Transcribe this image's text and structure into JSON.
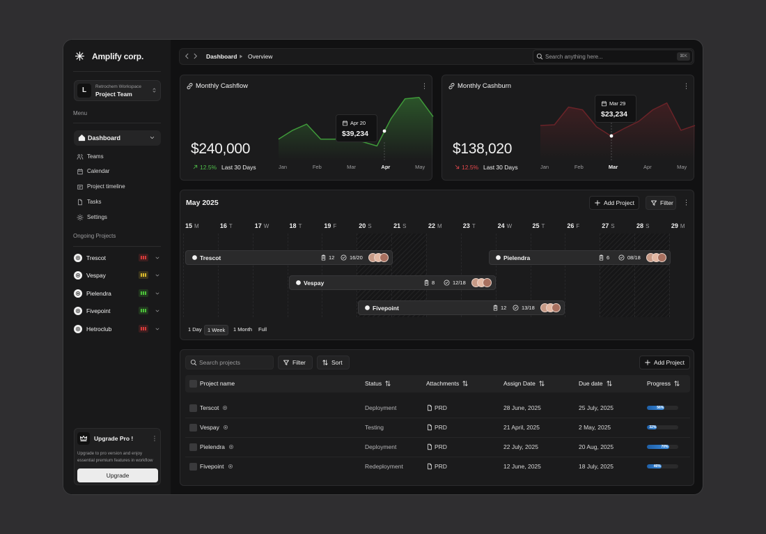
{
  "sidebar": {
    "brand": "Amplify corp.",
    "workspace": {
      "avatar": "L",
      "label": "Retrochem Workspace",
      "name": "Project Team"
    },
    "menu_label": "Menu",
    "menu": [
      "Dashboard",
      "Teams",
      "Calendar",
      "Project timeline",
      "Tasks",
      "Settings"
    ],
    "active_menu": 0,
    "projects_label": "Ongoing Projects",
    "projects": [
      {
        "name": "Trescot",
        "color": "#d83a3a"
      },
      {
        "name": "Vespay",
        "color": "#d9b92c"
      },
      {
        "name": "Pielendra",
        "color": "#4cc23a"
      },
      {
        "name": "Fivepoint",
        "color": "#4cc23a"
      },
      {
        "name": "Hetroclub",
        "color": "#d83a3a"
      }
    ],
    "upgrade": {
      "title": "Upgrade Pro !",
      "text": "Upgrade to pro version and enjoy essential premium features in workflow",
      "button": "Upgrade"
    }
  },
  "topbar": {
    "breadcrumb": [
      "Dashboard",
      "Overview"
    ],
    "search": "Search anything here...",
    "shortcut": "⌘K"
  },
  "cards": [
    {
      "title": "Monthly Cashflow",
      "amount": "$240,000",
      "change": "12.5%",
      "direction": "up",
      "period": "Last 30 Days",
      "color": "#3f9a3a",
      "accent": "#4fbf4a",
      "months": [
        "Jan",
        "Feb",
        "Mar",
        "Apr",
        "May"
      ],
      "active_month": 3,
      "tooltip": {
        "date": "Apr 20",
        "value": "$39,234"
      },
      "values": [
        31,
        44,
        53,
        31,
        31,
        33,
        27,
        21,
        61,
        90,
        92,
        64
      ],
      "ylim": [
        0,
        100
      ]
    },
    {
      "title": "Monthly Cashburn",
      "amount": "$138,020",
      "change": "12.5%",
      "direction": "down",
      "period": "Last 30 Days",
      "color": "#6a2328",
      "accent": "#e5484d",
      "months": [
        "Jan",
        "Feb",
        "Mar",
        "Apr",
        "May"
      ],
      "active_month": 2,
      "tooltip": {
        "date": "Mar 29",
        "value": "$23,234"
      },
      "values": [
        51,
        52,
        78,
        74,
        49,
        36,
        47,
        57,
        74,
        84,
        44,
        51
      ],
      "ylim": [
        0,
        100
      ]
    }
  ],
  "timeline": {
    "title": "May 2025",
    "actions": [
      "Add Project",
      "Filter"
    ],
    "days": [
      {
        "day": 15,
        "weekday": "M"
      },
      {
        "day": 16,
        "weekday": "T"
      },
      {
        "day": 17,
        "weekday": "W"
      },
      {
        "day": 18,
        "weekday": "T"
      },
      {
        "day": 19,
        "weekday": "F"
      },
      {
        "day": 20,
        "weekday": "S"
      },
      {
        "day": 21,
        "weekday": "S"
      },
      {
        "day": 22,
        "weekday": "M"
      },
      {
        "day": 23,
        "weekday": "T"
      },
      {
        "day": 24,
        "weekday": "W"
      },
      {
        "day": 25,
        "weekday": "T"
      },
      {
        "day": 26,
        "weekday": "F"
      },
      {
        "day": 27,
        "weekday": "S"
      },
      {
        "day": 28,
        "weekday": "S"
      },
      {
        "day": 29,
        "weekday": "M"
      }
    ],
    "projects": [
      {
        "name": "Trescot",
        "tasks": "12",
        "done": "16/20"
      },
      {
        "name": "Pielendra",
        "tasks": "6",
        "done": "08/18"
      },
      {
        "name": "Vespay",
        "tasks": "8",
        "done": "12/18"
      },
      {
        "name": "Fivepoint",
        "tasks": "12",
        "done": "13/18"
      }
    ],
    "views": [
      "1 Day",
      "1 Week",
      "1 Month",
      "Full"
    ],
    "active_view": 1
  },
  "table": {
    "search": "Search projects",
    "actions": [
      "Filter",
      "Sort",
      "Add Project"
    ],
    "columns": [
      "Project name",
      "Status",
      "Attachments",
      "Assign Date",
      "Due date",
      "Progress"
    ],
    "progress_scale": 100,
    "rows": [
      {
        "name": "Terscot",
        "status": "Deployment",
        "attachment": "PRD",
        "assigned": "28 June, 2025",
        "due": "25 July, 2025",
        "progress": 56,
        "progress_label": "56%"
      },
      {
        "name": "Vespay",
        "status": "Testing",
        "attachment": "PRD",
        "assigned": "21 April, 2025",
        "due": "2 May, 2025",
        "progress": 32,
        "progress_label": "32%"
      },
      {
        "name": "Pielendra",
        "status": "Deployment",
        "attachment": "PRD",
        "assigned": "22 July, 2025",
        "due": "20 Aug, 2025",
        "progress": 70,
        "progress_label": "70%"
      },
      {
        "name": "Fivepoint",
        "status": "Redeployment",
        "attachment": "PRD",
        "assigned": "12 June, 2025",
        "due": "18 July, 2025",
        "progress": 46,
        "progress_label": "46%"
      }
    ]
  }
}
